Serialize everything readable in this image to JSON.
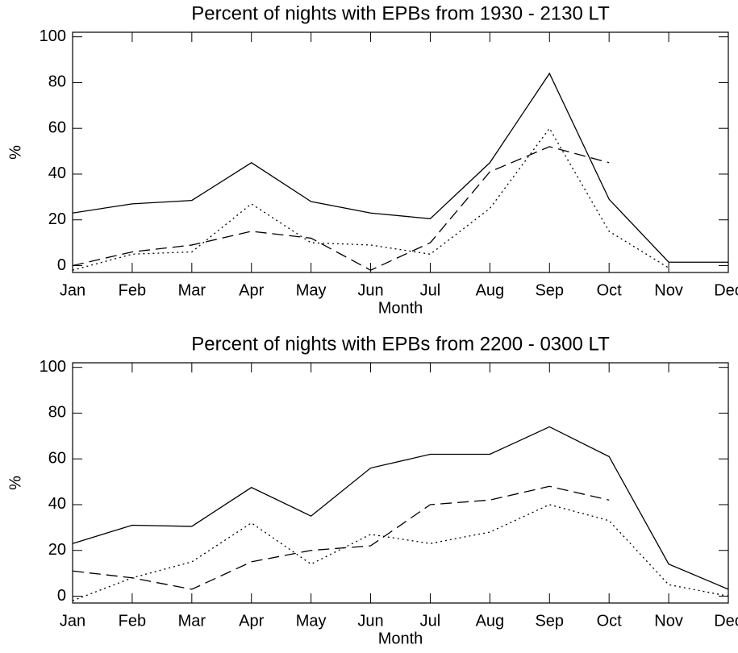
{
  "chart_data": [
    {
      "type": "line",
      "title": "Percent of nights with EPBs from 1930 - 2130 LT",
      "x_label": "Month",
      "y_label": "%",
      "categories": [
        "Jan",
        "Feb",
        "Mar",
        "Apr",
        "May",
        "Jun",
        "Jul",
        "Aug",
        "Sep",
        "Oct",
        "Nov",
        "Dec"
      ],
      "ylim": [
        -3,
        102
      ],
      "yticks": [
        0,
        20,
        40,
        60,
        80,
        100
      ],
      "series": [
        {
          "color": "#000000",
          "dash": "solid",
          "values": [
            23,
            27,
            28.5,
            45,
            28,
            23,
            20.5,
            45,
            84,
            29,
            1.5,
            1.5
          ]
        },
        {
          "color": "#000000",
          "dash": "dashed",
          "values": [
            0,
            6,
            9,
            15,
            12,
            -2,
            10,
            41,
            52,
            45,
            null,
            null
          ]
        },
        {
          "color": "#000000",
          "dash": "dotted",
          "values": [
            -2,
            5,
            6,
            27,
            10,
            9,
            5,
            25,
            60,
            15,
            -1,
            null
          ]
        }
      ]
    },
    {
      "type": "line",
      "title": "Percent of nights with EPBs from 2200 - 0300 LT",
      "x_label": "Month",
      "y_label": "%",
      "categories": [
        "Jan",
        "Feb",
        "Mar",
        "Apr",
        "May",
        "Jun",
        "Jul",
        "Aug",
        "Sep",
        "Oct",
        "Nov",
        "Dec"
      ],
      "ylim": [
        -3,
        102
      ],
      "yticks": [
        0,
        20,
        40,
        60,
        80,
        100
      ],
      "series": [
        {
          "color": "#000000",
          "dash": "solid",
          "values": [
            23,
            31,
            30.5,
            47.5,
            35,
            56,
            62,
            62,
            74,
            61,
            14,
            3
          ]
        },
        {
          "color": "#000000",
          "dash": "dashed",
          "values": [
            11,
            8,
            3,
            15,
            20,
            22,
            40,
            42,
            48,
            42,
            null,
            null
          ]
        },
        {
          "color": "#000000",
          "dash": "dotted",
          "values": [
            -2,
            8,
            15,
            32,
            14,
            27,
            23,
            28,
            40,
            33,
            5,
            0
          ]
        }
      ]
    }
  ]
}
